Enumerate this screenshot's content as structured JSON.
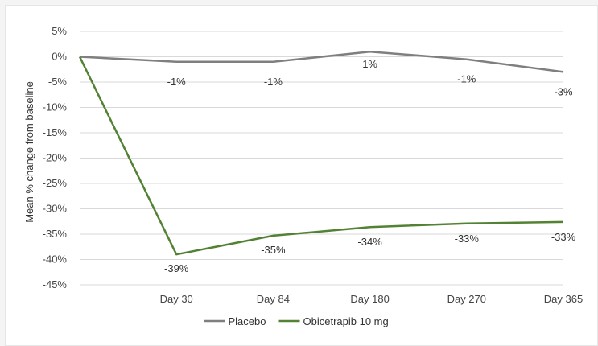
{
  "chart_data": {
    "type": "line",
    "title": "",
    "xlabel": "",
    "ylabel": "Mean % change from baseline",
    "categories": [
      "",
      "Day 30",
      "Day 84",
      "Day 180",
      "Day 270",
      "Day 365"
    ],
    "ylim": [
      -45,
      5
    ],
    "yticks": [
      5,
      0,
      -5,
      -10,
      -15,
      -20,
      -25,
      -30,
      -35,
      -40,
      -45
    ],
    "ytick_labels": [
      "5%",
      "0%",
      "-5%",
      "-10%",
      "-15%",
      "-20%",
      "-25%",
      "-30%",
      "-35%",
      "-40%",
      "-45%"
    ],
    "grid": true,
    "legend_position": "bottom",
    "series": [
      {
        "name": "Placebo",
        "color": "#7f7f7f",
        "values": [
          0,
          -1,
          -1,
          1,
          -0.5,
          -3
        ],
        "labels": [
          "",
          "-1%",
          "-1%",
          "1%",
          "-1%",
          "-3%"
        ]
      },
      {
        "name": "Obicetrapib 10 mg",
        "color": "#548235",
        "values": [
          0,
          -39,
          -35.3,
          -33.6,
          -32.9,
          -32.6
        ],
        "labels": [
          "",
          "-39%",
          "-35%",
          "-34%",
          "-33%",
          "-33%"
        ]
      }
    ]
  }
}
